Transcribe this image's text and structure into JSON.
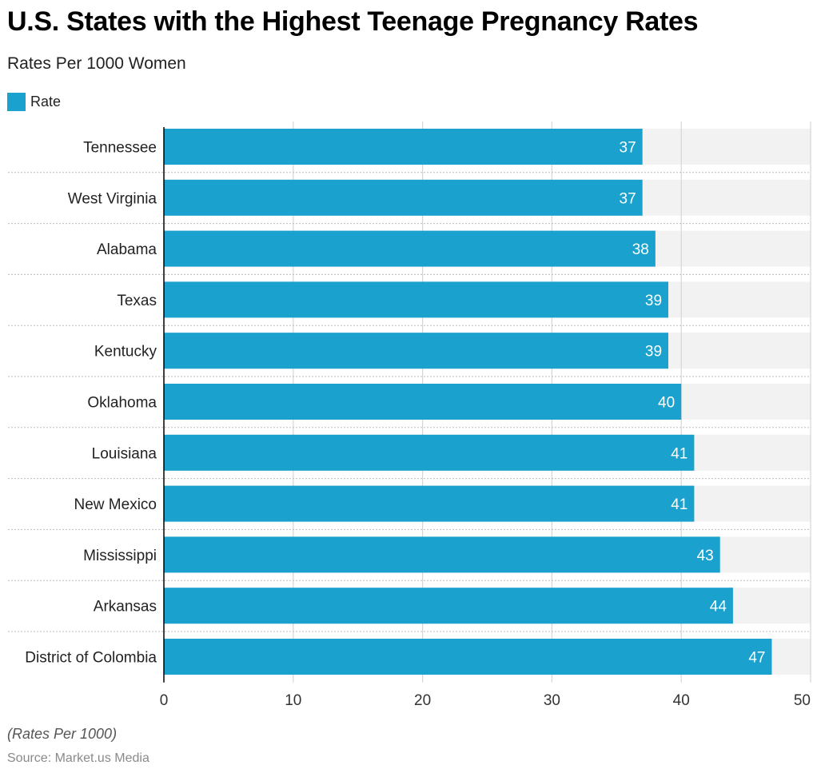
{
  "chart_data": {
    "type": "bar",
    "orientation": "horizontal",
    "title": "U.S. States with the Highest Teenage Pregnancy Rates",
    "subtitle": "Rates Per 1000 Women",
    "categories": [
      "Tennessee",
      "West Virginia",
      "Alabama",
      "Texas",
      "Kentucky",
      "Oklahoma",
      "Louisiana",
      "New Mexico",
      "Mississippi",
      "Arkansas",
      "District of Colombia"
    ],
    "series": [
      {
        "name": "Rate",
        "values": [
          37,
          37,
          38,
          39,
          39,
          40,
          41,
          41,
          43,
          44,
          47
        ],
        "color": "#1aa1ce"
      }
    ],
    "xlim": [
      0,
      50
    ],
    "xticks": [
      0,
      10,
      20,
      30,
      40,
      50
    ],
    "grid": true,
    "legend": "top-left",
    "data_labels": true,
    "note": "(Rates Per 1000)",
    "source": "Source: Market.us Media"
  }
}
